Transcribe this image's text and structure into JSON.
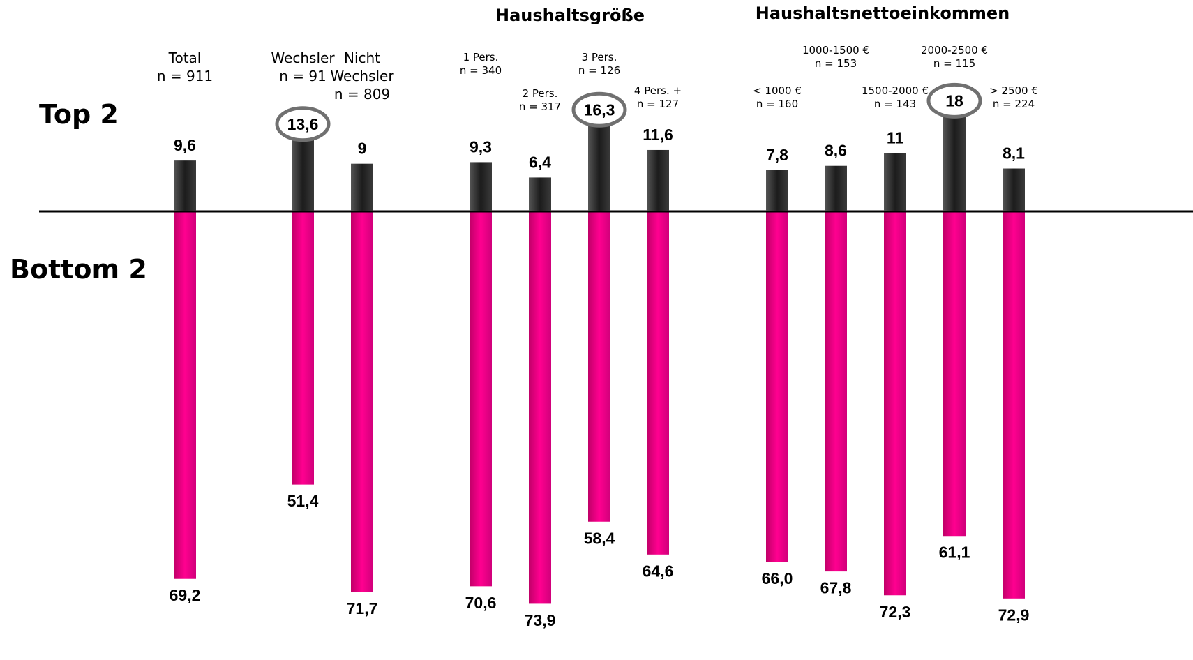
{
  "row_labels": {
    "top": "Top 2",
    "bottom": "Bottom 2"
  },
  "colors": {
    "top": "#2a2a2a",
    "bottom": "#ff0088",
    "axis": "#000000",
    "highlight": "#707070"
  },
  "chart_data": {
    "type": "bar",
    "group_titles": [
      "Haushaltsgröße",
      "Haushaltsnettoeinkommen"
    ],
    "categories": [
      {
        "line1": "Total",
        "line2": "n = 911",
        "top": 9.6,
        "bottom": 69.2,
        "top_label": "9,6",
        "bottom_label": "69,2",
        "highlight": false
      },
      {
        "line1": "Wechsler",
        "line2": "n = 91",
        "top": 13.6,
        "bottom": 51.4,
        "top_label": "13,6",
        "bottom_label": "51,4",
        "highlight": true
      },
      {
        "line1": "Nicht",
        "line2": "Wechsler",
        "line3": "n = 809",
        "top": 9.0,
        "bottom": 71.7,
        "top_label": "9",
        "bottom_label": "71,7",
        "highlight": false
      },
      {
        "line1": "1 Pers.",
        "line2": "n = 340",
        "top": 9.3,
        "bottom": 70.6,
        "top_label": "9,3",
        "bottom_label": "70,6",
        "highlight": false
      },
      {
        "line1": "2 Pers.",
        "line2": "n = 317",
        "top": 6.4,
        "bottom": 73.9,
        "top_label": "6,4",
        "bottom_label": "73,9",
        "highlight": false
      },
      {
        "line1": "3 Pers.",
        "line2": "n = 126",
        "top": 16.3,
        "bottom": 58.4,
        "top_label": "16,3",
        "bottom_label": "58,4",
        "highlight": true
      },
      {
        "line1": "4 Pers. +",
        "line2": "n = 127",
        "top": 11.6,
        "bottom": 64.6,
        "top_label": "11,6",
        "bottom_label": "64,6",
        "highlight": false
      },
      {
        "line1": "< 1000 €",
        "line2": "n = 160",
        "top": 7.8,
        "bottom": 66.0,
        "top_label": "7,8",
        "bottom_label": "66,0",
        "highlight": false
      },
      {
        "line1": "1000-1500 €",
        "line2": "n = 153",
        "top": 8.6,
        "bottom": 67.8,
        "top_label": "8,6",
        "bottom_label": "67,8",
        "highlight": false
      },
      {
        "line1": "1500-2000 €",
        "line2": "n = 143",
        "top": 11.0,
        "bottom": 72.3,
        "top_label": "11",
        "bottom_label": "72,3",
        "highlight": false
      },
      {
        "line1": "2000-2500 €",
        "line2": "n = 115",
        "top": 18.0,
        "bottom": 61.1,
        "top_label": "18",
        "bottom_label": "61,1",
        "highlight": true
      },
      {
        "line1": "> 2500 €",
        "line2": "n = 224",
        "top": 8.1,
        "bottom": 72.9,
        "top_label": "8,1",
        "bottom_label": "72,9",
        "highlight": false
      }
    ]
  }
}
